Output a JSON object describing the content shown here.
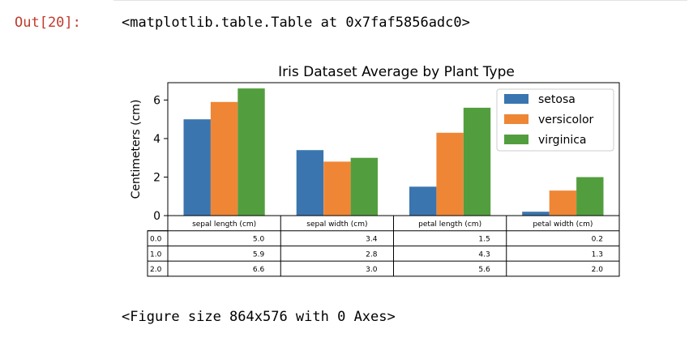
{
  "output_cell": {
    "prompt": "Out[20]:",
    "repr": "<matplotlib.table.Table at 0x7faf5856adc0>"
  },
  "figure_note": "<Figure size 864x576 with 0 Axes>",
  "chart_data": {
    "type": "bar",
    "title": "Iris Dataset Average by Plant Type",
    "xlabel": "",
    "ylabel": "Centimeters (cm)",
    "ylim": [
      0,
      6.9
    ],
    "yticks": [
      0,
      2,
      4,
      6
    ],
    "legend_position": "top-right",
    "categories": [
      "sepal length (cm)",
      "sepal width (cm)",
      "petal length (cm)",
      "petal width (cm)"
    ],
    "series": [
      {
        "name": "setosa",
        "color": "#3a75af",
        "values": [
          5.0,
          3.4,
          1.5,
          0.2
        ]
      },
      {
        "name": "versicolor",
        "color": "#ef8636",
        "values": [
          5.9,
          2.8,
          4.3,
          1.3
        ]
      },
      {
        "name": "virginica",
        "color": "#529e3e",
        "values": [
          6.6,
          3.0,
          5.6,
          2.0
        ]
      }
    ],
    "table": {
      "row_labels": [
        "0.0",
        "1.0",
        "2.0"
      ],
      "cells": [
        [
          "5.0",
          "3.4",
          "1.5",
          "0.2"
        ],
        [
          "5.9",
          "2.8",
          "4.3",
          "1.3"
        ],
        [
          "6.6",
          "3.0",
          "5.6",
          "2.0"
        ]
      ]
    }
  }
}
